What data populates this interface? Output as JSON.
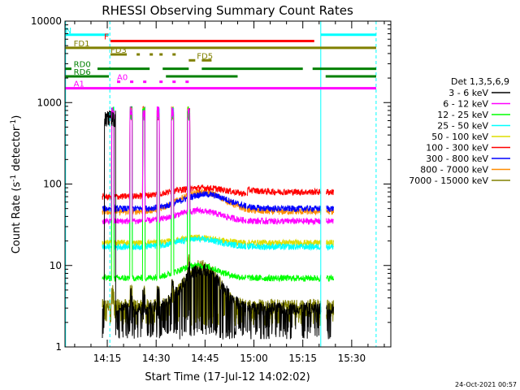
{
  "chart_data": {
    "type": "line",
    "title": "RHESSI Observing Summary Count Rates",
    "xlabel": "Start Time (17-Jul-12 14:02:02)",
    "ylabel_parts": [
      "Count Rate (s",
      "-1",
      " detector",
      "-1",
      ")"
    ],
    "y_scale": "log",
    "ylim": [
      1,
      10000
    ],
    "xlim_minutes_after_14_00": [
      2.03,
      102
    ],
    "x_ticks": [
      {
        "m": 15,
        "label": "14:15"
      },
      {
        "m": 30,
        "label": "14:30"
      },
      {
        "m": 45,
        "label": "14:45"
      },
      {
        "m": 60,
        "label": "15:00"
      },
      {
        "m": 75,
        "label": "15:15"
      },
      {
        "m": 90,
        "label": "15:30"
      }
    ],
    "y_ticks": [
      {
        "v": 1,
        "label": "1"
      },
      {
        "v": 10,
        "label": "10"
      },
      {
        "v": 100,
        "label": "100"
      },
      {
        "v": 1000,
        "label": "1000"
      },
      {
        "v": 10000,
        "label": "10000"
      }
    ],
    "legend_title": "Det 1,3,5,6,9",
    "legend_position": "right",
    "series": [
      {
        "name": "3 - 6 keV",
        "color": "#000000",
        "key": "s1",
        "level": 3
      },
      {
        "name": "6 - 12 keV",
        "color": "#ff00ff",
        "key": "s2",
        "level": 40
      },
      {
        "name": "12 - 25 keV",
        "color": "#00ff00",
        "key": "s3",
        "level": 8
      },
      {
        "name": "25 - 50 keV",
        "color": "#00ffff",
        "key": "s4",
        "level": 17
      },
      {
        "name": "50 - 100 keV",
        "color": "#dddd00",
        "key": "s5",
        "level": 20
      },
      {
        "name": "100 - 300 keV",
        "color": "#ff0000",
        "key": "s6",
        "level": 72
      },
      {
        "name": "300 - 800 keV",
        "color": "#0000ff",
        "key": "s7",
        "level": 53
      },
      {
        "name": "800 - 7000 keV",
        "color": "#ff8c00",
        "key": "s8",
        "level": 49
      },
      {
        "name": "7000 - 15000 keV",
        "color": "#808000",
        "key": "s9",
        "level": 3.5
      }
    ],
    "state_bars": [
      {
        "label": "N",
        "color": "#00ffff",
        "y": 6800,
        "segments": [
          [
            2.2,
            15.5
          ],
          [
            80.5,
            97.5
          ]
        ]
      },
      {
        "label": "F",
        "color": "#ff0000",
        "y": 5700,
        "segments": [
          [
            16,
            78.5
          ]
        ]
      },
      {
        "label": "FD1",
        "color": "#808000",
        "y": 4700,
        "segments": [
          [
            2.2,
            97.5
          ]
        ]
      },
      {
        "label": "FD3",
        "color": "#808000",
        "y": 3900,
        "segments": [
          [
            16,
            21
          ],
          [
            24,
            25
          ],
          [
            28,
            29
          ],
          [
            31,
            32
          ],
          [
            35,
            36
          ]
        ]
      },
      {
        "label": "FD5",
        "color": "#808000",
        "y": 3300,
        "segments": [
          [
            40,
            42
          ],
          [
            44,
            47
          ]
        ]
      },
      {
        "label": "RD0",
        "color": "#008000",
        "y": 2600,
        "segments": [
          [
            2.2,
            4
          ],
          [
            12,
            28
          ],
          [
            32,
            40
          ],
          [
            44,
            75
          ],
          [
            78,
            97.5
          ]
        ]
      },
      {
        "label": "RD6",
        "color": "#008000",
        "y": 2100,
        "segments": [
          [
            2.2,
            15.5
          ],
          [
            33,
            55
          ],
          [
            82,
            97.5
          ]
        ]
      },
      {
        "label": "A0",
        "color": "#ff00ff",
        "y": 1800,
        "segments": [
          [
            18,
            19
          ],
          [
            22,
            23
          ],
          [
            26,
            27
          ],
          [
            31,
            32
          ],
          [
            35,
            36
          ],
          [
            39,
            40
          ]
        ]
      },
      {
        "label": "A1",
        "color": "#ff00ff",
        "y": 1500,
        "segments": [
          [
            2.2,
            97.5
          ]
        ]
      }
    ],
    "vertical_lines": [
      {
        "m": 2.2,
        "color": "#00ffff",
        "style": "solid"
      },
      {
        "m": 15.8,
        "color": "#00ffff",
        "style": "dashed"
      },
      {
        "m": 80.5,
        "color": "#00ffff",
        "style": "solid"
      },
      {
        "m": 97.5,
        "color": "#00ffff",
        "style": "dashed"
      }
    ],
    "data_window_minutes_after_14_00": [
      13.5,
      84.5
    ],
    "data_gaps_minutes_after_14_00": [
      [
        57.6,
        57.9
      ],
      [
        80.6,
        82.2
      ]
    ],
    "spikes_minutes_after_14_00": [
      16.7,
      22.3,
      26.2,
      30.6,
      35.0,
      40.0
    ],
    "timestamp": "24-Oct-2021 00:57"
  }
}
